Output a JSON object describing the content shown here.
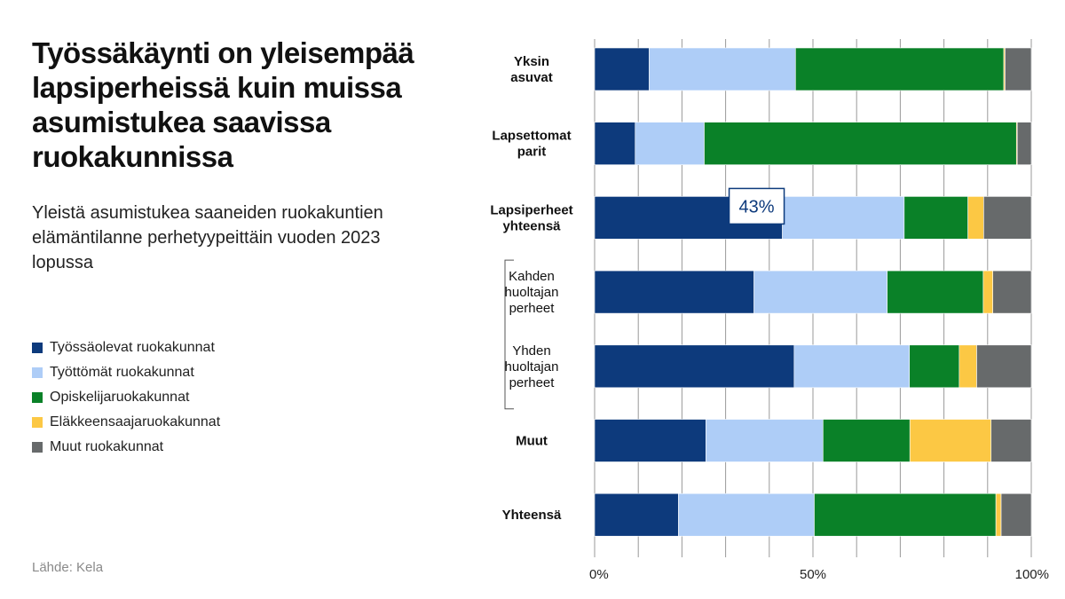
{
  "title": "Työssäkäynti on yleisempää lapsiperheissä kuin muissa asumistukea saavissa ruokakunnissa",
  "subtitle": "Yleistä asumistukea saaneiden ruokakuntien elämäntilanne perhetyypeittäin vuoden 2023 lopussa",
  "source": "Lähde: Kela",
  "chart_data": {
    "type": "bar",
    "orientation": "horizontal",
    "stacked": "percent",
    "categories": [
      [
        "Yksin",
        "asuvat"
      ],
      [
        "Lapsettomat",
        "parit"
      ],
      [
        "Lapsiperheet",
        "yhteensä"
      ],
      [
        "Kahden",
        "huoltajan",
        "perheet"
      ],
      [
        "Yhden",
        "huoltajan",
        "perheet"
      ],
      [
        "Muut"
      ],
      [
        "Yhteensä"
      ]
    ],
    "subcategory_rows": [
      3,
      4
    ],
    "series": [
      {
        "name": "Työssäolevat ruokakunnat",
        "color": "#0d3a7c",
        "values": [
          12.5,
          9.3,
          43.0,
          36.5,
          45.7,
          25.5,
          19.2
        ]
      },
      {
        "name": "Työttömät ruokakunnat",
        "color": "#aecdf7",
        "values": [
          33.5,
          15.8,
          27.9,
          30.5,
          26.4,
          26.8,
          31.1
        ]
      },
      {
        "name": "Opiskelijaruokakunnat",
        "color": "#0a8128",
        "values": [
          47.7,
          71.5,
          14.6,
          22.0,
          11.4,
          19.9,
          41.6
        ]
      },
      {
        "name": "Eläkkeensaajaruokakunnat",
        "color": "#fcc844",
        "values": [
          0.3,
          0.2,
          3.6,
          2.2,
          4.0,
          18.6,
          1.2
        ]
      },
      {
        "name": "Muut ruokakunnat",
        "color": "#676a6b",
        "values": [
          6.0,
          3.2,
          10.9,
          8.8,
          12.5,
          9.2,
          6.9
        ]
      }
    ],
    "callout": {
      "category_index": 2,
      "text": "43%"
    },
    "xlim": [
      0,
      100
    ],
    "x_ticks": [
      0,
      10,
      20,
      30,
      40,
      50,
      60,
      70,
      80,
      90,
      100
    ],
    "x_tick_labels": {
      "0": "0%",
      "50": "50%",
      "100": "100%"
    },
    "grid": true,
    "xlabel": "",
    "ylabel": "",
    "legend_position": "left"
  }
}
